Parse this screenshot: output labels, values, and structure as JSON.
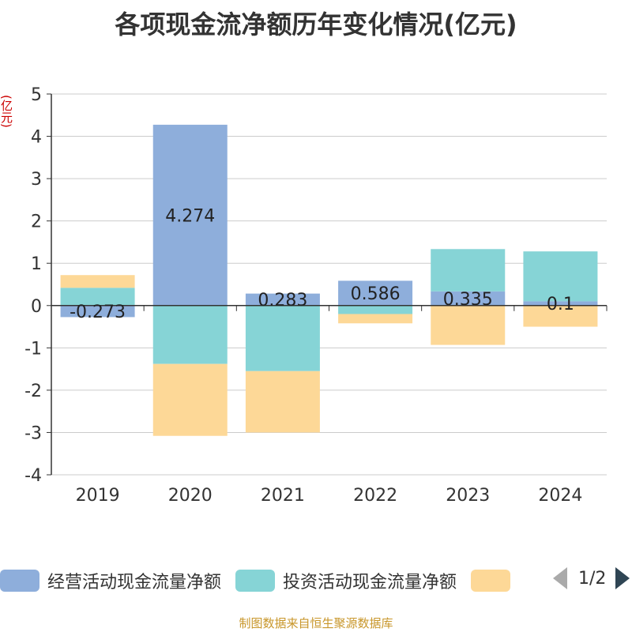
{
  "title": "各项现金流净额历年变化情况(亿元)",
  "unit_label": "(亿元)",
  "source": "制图数据来自恒生聚源数据库",
  "legend": {
    "items": [
      {
        "label": "经营活动现金流量净额",
        "color": "#8eaedb"
      },
      {
        "label": "投资活动现金流量净额",
        "color": "#86d4d6"
      },
      {
        "label": "",
        "color": "#fdd897"
      }
    ],
    "page_text": "1/2"
  },
  "chart_data": {
    "type": "bar",
    "stacked": true,
    "categories": [
      "2019",
      "2020",
      "2021",
      "2022",
      "2023",
      "2024"
    ],
    "ylim": [
      -4,
      5
    ],
    "yticks": [
      5,
      4,
      3,
      2,
      1,
      0,
      -1,
      -2,
      -3,
      -4
    ],
    "series": [
      {
        "name": "经营活动现金流量净额",
        "color": "#8eaedb",
        "values": [
          -0.273,
          4.274,
          0.283,
          0.586,
          0.335,
          0.1
        ],
        "labels": [
          "-0.273",
          "4.274",
          "0.283",
          "0.586",
          "0.335",
          "0.1"
        ]
      },
      {
        "name": "投资活动现金流量净额",
        "color": "#86d4d6",
        "values": [
          0.42,
          -1.38,
          -1.55,
          -0.2,
          1.0,
          1.18
        ]
      },
      {
        "color": "#fdd897",
        "values": [
          0.3,
          -1.7,
          -1.45,
          -0.22,
          -0.93,
          -0.5
        ]
      }
    ],
    "grid": true
  }
}
